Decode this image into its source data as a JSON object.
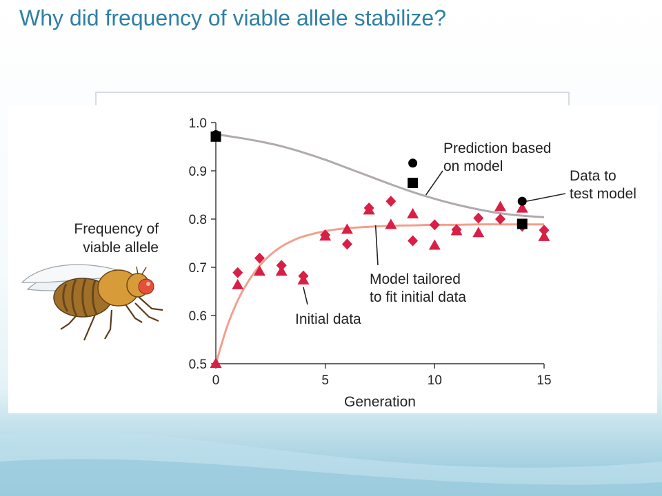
{
  "slide": {
    "title": "Why did frequency of viable allele stabilize?"
  },
  "colors": {
    "title": "#2f7fa4",
    "initial_marker": "#d81f45",
    "model_tailored_line": "#f1a08e",
    "prediction_line": "#b0aaad",
    "test_marker": "#000000"
  },
  "icons": {
    "fly": "fruit-fly-illustration"
  },
  "chart_data": {
    "type": "scatter",
    "xlabel": "Generation",
    "ylabel": [
      "Frequency of",
      "viable allele"
    ],
    "xlim": [
      0,
      15
    ],
    "ylim": [
      0.5,
      1.0
    ],
    "xticks": [
      0,
      5,
      10,
      15
    ],
    "yticks": [
      "0.5",
      "0.6",
      "0.7",
      "0.8",
      "0.9",
      "1.0"
    ],
    "grid": false,
    "series": [
      {
        "name": "Initial data",
        "marker": "diamond",
        "points": [
          [
            1,
            0.689
          ],
          [
            2,
            0.719
          ],
          [
            3,
            0.704
          ],
          [
            4,
            0.682
          ],
          [
            5,
            0.767
          ],
          [
            6,
            0.748
          ],
          [
            7,
            0.823
          ],
          [
            8,
            0.837
          ],
          [
            9,
            0.755
          ],
          [
            10,
            0.788
          ],
          [
            11,
            0.778
          ],
          [
            12,
            0.802
          ],
          [
            13,
            0.8
          ],
          [
            14,
            0.785
          ],
          [
            15,
            0.777
          ]
        ]
      },
      {
        "name": "Initial data",
        "marker": "triangle",
        "points": [
          [
            0,
            0.5
          ],
          [
            1,
            0.663
          ],
          [
            2,
            0.691
          ],
          [
            3,
            0.691
          ],
          [
            4,
            0.673
          ],
          [
            5,
            0.764
          ],
          [
            6,
            0.778
          ],
          [
            7,
            0.818
          ],
          [
            8,
            0.788
          ],
          [
            9,
            0.81
          ],
          [
            10,
            0.745
          ],
          [
            11,
            0.775
          ],
          [
            12,
            0.771
          ],
          [
            13,
            0.825
          ],
          [
            14,
            0.822
          ],
          [
            15,
            0.763
          ]
        ]
      },
      {
        "name": "Data to test model",
        "marker": "square",
        "points": [
          [
            0,
            0.971
          ],
          [
            9,
            0.875
          ],
          [
            14,
            0.79
          ]
        ]
      },
      {
        "name": "Data to test model",
        "marker": "circle",
        "points": [
          [
            0,
            0.975
          ],
          [
            9,
            0.916
          ],
          [
            14,
            0.837
          ]
        ]
      }
    ],
    "curves": [
      {
        "name": "Model tailored to fit initial data",
        "points": [
          [
            0,
            0.5
          ],
          [
            0.5,
            0.575
          ],
          [
            1,
            0.631
          ],
          [
            1.5,
            0.672
          ],
          [
            2,
            0.703
          ],
          [
            2.5,
            0.726
          ],
          [
            3,
            0.743
          ],
          [
            3.5,
            0.755
          ],
          [
            4,
            0.764
          ],
          [
            5,
            0.775
          ],
          [
            6,
            0.781
          ],
          [
            7,
            0.784
          ],
          [
            8,
            0.786
          ],
          [
            9,
            0.787
          ],
          [
            10,
            0.788
          ],
          [
            11,
            0.788
          ],
          [
            12,
            0.789
          ],
          [
            13,
            0.789
          ],
          [
            14,
            0.789
          ],
          [
            15,
            0.789
          ]
        ]
      },
      {
        "name": "Prediction based on model",
        "points": [
          [
            0,
            0.976
          ],
          [
            1,
            0.969
          ],
          [
            2,
            0.961
          ],
          [
            3,
            0.951
          ],
          [
            4,
            0.938
          ],
          [
            5,
            0.923
          ],
          [
            6,
            0.906
          ],
          [
            7,
            0.889
          ],
          [
            8,
            0.872
          ],
          [
            9,
            0.856
          ],
          [
            10,
            0.842
          ],
          [
            11,
            0.83
          ],
          [
            12,
            0.82
          ],
          [
            13,
            0.812
          ],
          [
            14,
            0.807
          ],
          [
            15,
            0.804
          ]
        ]
      }
    ],
    "annotations": [
      {
        "lines": [
          "Prediction based",
          "on model"
        ],
        "points_to": [
          9.6,
          0.85
        ]
      },
      {
        "lines": [
          "Data to",
          "test model"
        ],
        "points_to": [
          14.2,
          0.837
        ]
      },
      {
        "lines": [
          "Model tailored",
          "to fit initial data"
        ],
        "points_to": [
          7.3,
          0.787
        ]
      },
      {
        "lines": [
          "Initial data"
        ],
        "points_to": [
          4,
          0.673
        ]
      }
    ]
  }
}
